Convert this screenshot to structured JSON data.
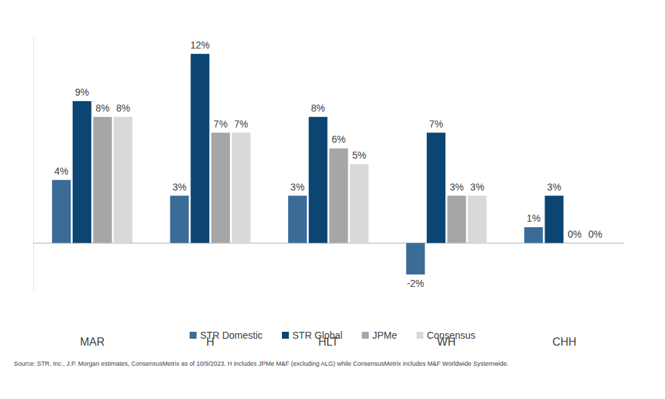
{
  "chart_data": {
    "type": "bar",
    "categories": [
      "MAR",
      "H",
      "HLT",
      "WH",
      "CHH"
    ],
    "series": [
      {
        "name": "STR Domestic",
        "color": "#3b6c97",
        "values": [
          4,
          3,
          3,
          -2,
          1
        ],
        "value_labels": [
          "4%",
          "3%",
          "3%",
          "-2%",
          "1%"
        ]
      },
      {
        "name": "STR Global",
        "color": "#0c4571",
        "values": [
          9,
          12,
          8,
          7,
          3
        ],
        "value_labels": [
          "9%",
          "12%",
          "8%",
          "7%",
          "3%"
        ]
      },
      {
        "name": "JPMe",
        "color": "#a6a6a6",
        "values": [
          8,
          7,
          6,
          3,
          0
        ],
        "value_labels": [
          "8%",
          "7%",
          "6%",
          "3%",
          "0%"
        ]
      },
      {
        "name": "Consensus",
        "color": "#d9d9d9",
        "values": [
          8,
          7,
          5,
          3,
          0
        ],
        "value_labels": [
          "8%",
          "7%",
          "5%",
          "3%",
          "0%"
        ]
      }
    ],
    "ylim": [
      -3,
      13
    ],
    "grid": false,
    "legend": "bottom",
    "data_labels": true,
    "tick_labels": "x",
    "source": "Source: STR, Inc., J.P. Morgan estimates, ConsensusMetrix as of 10/9/2023. H includes JPMe M&F (excluding ALG) while ConsensusMetrix includes M&F Worldwide Systemwide."
  }
}
